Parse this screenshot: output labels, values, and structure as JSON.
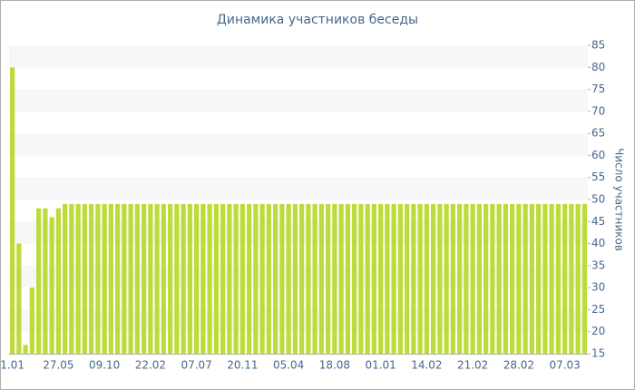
{
  "chart_data": {
    "type": "bar",
    "title": "Динамика участников беседы",
    "y_axis_label": "Число участников",
    "categories": [
      "1.01",
      null,
      null,
      null,
      null,
      null,
      null,
      "27.05",
      null,
      null,
      null,
      null,
      null,
      null,
      "09.10",
      null,
      null,
      null,
      null,
      null,
      null,
      "22.02",
      null,
      null,
      null,
      null,
      null,
      null,
      "07.07",
      null,
      null,
      null,
      null,
      null,
      null,
      "20.11",
      null,
      null,
      null,
      null,
      null,
      null,
      "05.04",
      null,
      null,
      null,
      null,
      null,
      null,
      "18.08",
      null,
      null,
      null,
      null,
      null,
      null,
      "01.01",
      null,
      null,
      null,
      null,
      null,
      null,
      "14.02",
      null,
      null,
      null,
      null,
      null,
      null,
      "21.02",
      null,
      null,
      null,
      null,
      null,
      null,
      "28.02",
      null,
      null,
      null,
      null,
      null,
      null,
      "07.03",
      null,
      null,
      null
    ],
    "values": [
      80,
      40,
      17,
      30,
      48,
      48,
      46,
      48,
      49,
      49,
      49,
      49,
      49,
      49,
      49,
      49,
      49,
      49,
      49,
      49,
      49,
      49,
      49,
      49,
      49,
      49,
      49,
      49,
      49,
      49,
      49,
      49,
      49,
      49,
      49,
      49,
      49,
      49,
      49,
      49,
      49,
      49,
      49,
      49,
      49,
      49,
      49,
      49,
      49,
      49,
      49,
      49,
      49,
      49,
      49,
      49,
      49,
      49,
      49,
      49,
      49,
      49,
      49,
      49,
      49,
      49,
      49,
      49,
      49,
      49,
      49,
      49,
      49,
      49,
      49,
      49,
      49,
      49,
      49,
      49,
      49,
      49,
      49,
      49,
      49,
      49,
      49,
      49
    ],
    "color": "#bddb3a",
    "ylim": [
      15,
      85
    ],
    "yticks": [
      15,
      20,
      25,
      30,
      35,
      40,
      45,
      50,
      55,
      60,
      65,
      70,
      75,
      80,
      85
    ],
    "grid": true
  }
}
